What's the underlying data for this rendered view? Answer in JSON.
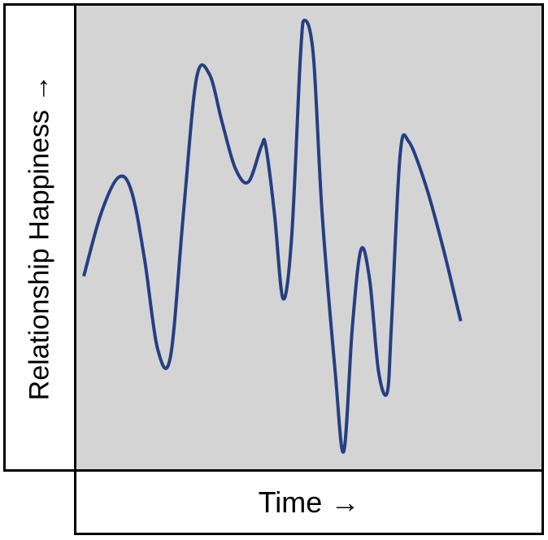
{
  "chart_data": {
    "type": "line",
    "xlabel": "Time →",
    "ylabel": "Relationship Happiness →",
    "grid": false,
    "xlim": [
      0,
      100
    ],
    "ylim": [
      0,
      100
    ],
    "series": [
      {
        "color": "#253f82",
        "points": [
          [
            0,
            41
          ],
          [
            4,
            55
          ],
          [
            8,
            63
          ],
          [
            11,
            60
          ],
          [
            14,
            45
          ],
          [
            17,
            25
          ],
          [
            20,
            23
          ],
          [
            23,
            55
          ],
          [
            26,
            85
          ],
          [
            29,
            86
          ],
          [
            32,
            75
          ],
          [
            35,
            65
          ],
          [
            38,
            62
          ],
          [
            41,
            70
          ],
          [
            42,
            70
          ],
          [
            44,
            55
          ],
          [
            46,
            36
          ],
          [
            48,
            50
          ],
          [
            50,
            90
          ],
          [
            51,
            98
          ],
          [
            53,
            90
          ],
          [
            55,
            55
          ],
          [
            58,
            20
          ],
          [
            60,
            2
          ],
          [
            62,
            30
          ],
          [
            64,
            47
          ],
          [
            66,
            40
          ],
          [
            68,
            20
          ],
          [
            70,
            15
          ],
          [
            71,
            30
          ],
          [
            73,
            68
          ],
          [
            75,
            71
          ],
          [
            79,
            61
          ],
          [
            83,
            47
          ],
          [
            86,
            35
          ],
          [
            87,
            31
          ]
        ]
      }
    ]
  }
}
